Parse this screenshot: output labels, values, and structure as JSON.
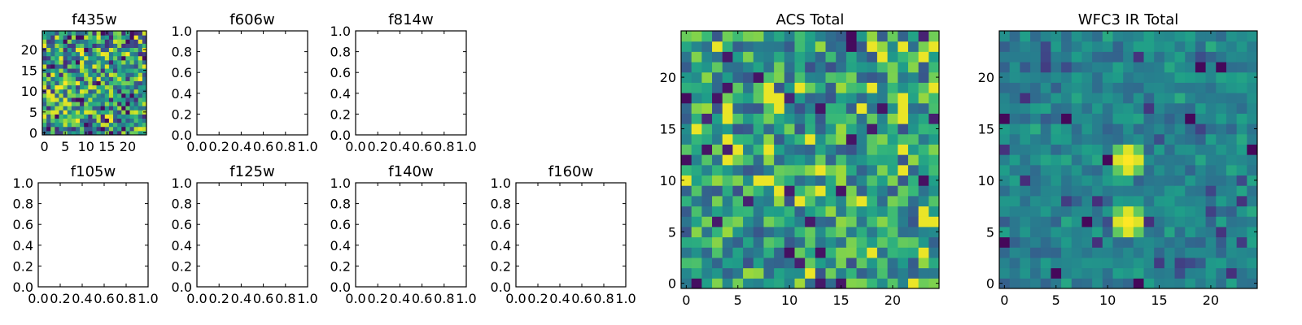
{
  "figure": {
    "background": "#ffffff"
  },
  "colormap": {
    "name": "viridis",
    "stops": [
      "#440154",
      "#482878",
      "#3e4a89",
      "#31688e",
      "#26828e",
      "#1f9e89",
      "#35b779",
      "#6ece58",
      "#b5de2b",
      "#fde725"
    ]
  },
  "chart_data": [
    {
      "type": "heatmap",
      "title": "f435w",
      "shape": [
        25,
        25
      ],
      "xticks": [
        "0",
        "5",
        "10",
        "15",
        "20"
      ],
      "yticks": [
        "0",
        "5",
        "10",
        "15",
        "20"
      ],
      "xlim": [
        -0.5,
        24.5
      ],
      "ylim": [
        -0.5,
        24.5
      ],
      "values_generated": "random-noise image (values not readable)"
    },
    {
      "type": "heatmap",
      "title": "f606w",
      "empty": true,
      "xticks": [
        "0.0",
        "0.2",
        "0.4",
        "0.6",
        "0.8",
        "1.0"
      ],
      "yticks": [
        "0.0",
        "0.2",
        "0.4",
        "0.6",
        "0.8",
        "1.0"
      ],
      "xlim": [
        0,
        1
      ],
      "ylim": [
        0,
        1
      ]
    },
    {
      "type": "heatmap",
      "title": "f814w",
      "empty": true,
      "xticks": [
        "0.0",
        "0.2",
        "0.4",
        "0.6",
        "0.8",
        "1.0"
      ],
      "yticks": [
        "0.0",
        "0.2",
        "0.4",
        "0.6",
        "0.8",
        "1.0"
      ],
      "xlim": [
        0,
        1
      ],
      "ylim": [
        0,
        1
      ]
    },
    {
      "type": "heatmap",
      "title": "f105w",
      "empty": true,
      "xticks": [
        "0.0",
        "0.2",
        "0.4",
        "0.6",
        "0.8",
        "1.0"
      ],
      "yticks": [
        "0.0",
        "0.2",
        "0.4",
        "0.6",
        "0.8",
        "1.0"
      ],
      "xlim": [
        0,
        1
      ],
      "ylim": [
        0,
        1
      ]
    },
    {
      "type": "heatmap",
      "title": "f125w",
      "empty": true,
      "xticks": [
        "0.0",
        "0.2",
        "0.4",
        "0.6",
        "0.8",
        "1.0"
      ],
      "yticks": [
        "0.0",
        "0.2",
        "0.4",
        "0.6",
        "0.8",
        "1.0"
      ],
      "xlim": [
        0,
        1
      ],
      "ylim": [
        0,
        1
      ]
    },
    {
      "type": "heatmap",
      "title": "f140w",
      "empty": true,
      "xticks": [
        "0.0",
        "0.2",
        "0.4",
        "0.6",
        "0.8",
        "1.0"
      ],
      "yticks": [
        "0.0",
        "0.2",
        "0.4",
        "0.6",
        "0.8",
        "1.0"
      ],
      "xlim": [
        0,
        1
      ],
      "ylim": [
        0,
        1
      ]
    },
    {
      "type": "heatmap",
      "title": "f160w",
      "empty": true,
      "xticks": [
        "0.0",
        "0.2",
        "0.4",
        "0.6",
        "0.8",
        "1.0"
      ],
      "yticks": [
        "0.0",
        "0.2",
        "0.4",
        "0.6",
        "0.8",
        "1.0"
      ],
      "xlim": [
        0,
        1
      ],
      "ylim": [
        0,
        1
      ]
    },
    {
      "type": "heatmap",
      "title": "ACS Total",
      "shape": [
        25,
        25
      ],
      "xticks": [
        "0",
        "5",
        "10",
        "15",
        "20"
      ],
      "yticks": [
        "0",
        "5",
        "10",
        "15",
        "20"
      ],
      "xlim": [
        -0.5,
        24.5
      ],
      "ylim": [
        -0.5,
        24.5
      ],
      "values_generated": "random-noise image (values not readable)"
    },
    {
      "type": "heatmap",
      "title": "WFC3 IR Total",
      "shape": [
        25,
        25
      ],
      "xticks": [
        "0",
        "5",
        "10",
        "15",
        "20"
      ],
      "yticks": [
        "0",
        "5",
        "10",
        "15",
        "20"
      ],
      "xlim": [
        -0.5,
        24.5
      ],
      "ylim": [
        -0.5,
        24.5
      ],
      "values_generated": "random-noise image with two bright crosses near (12,12) and (12,6)"
    }
  ]
}
